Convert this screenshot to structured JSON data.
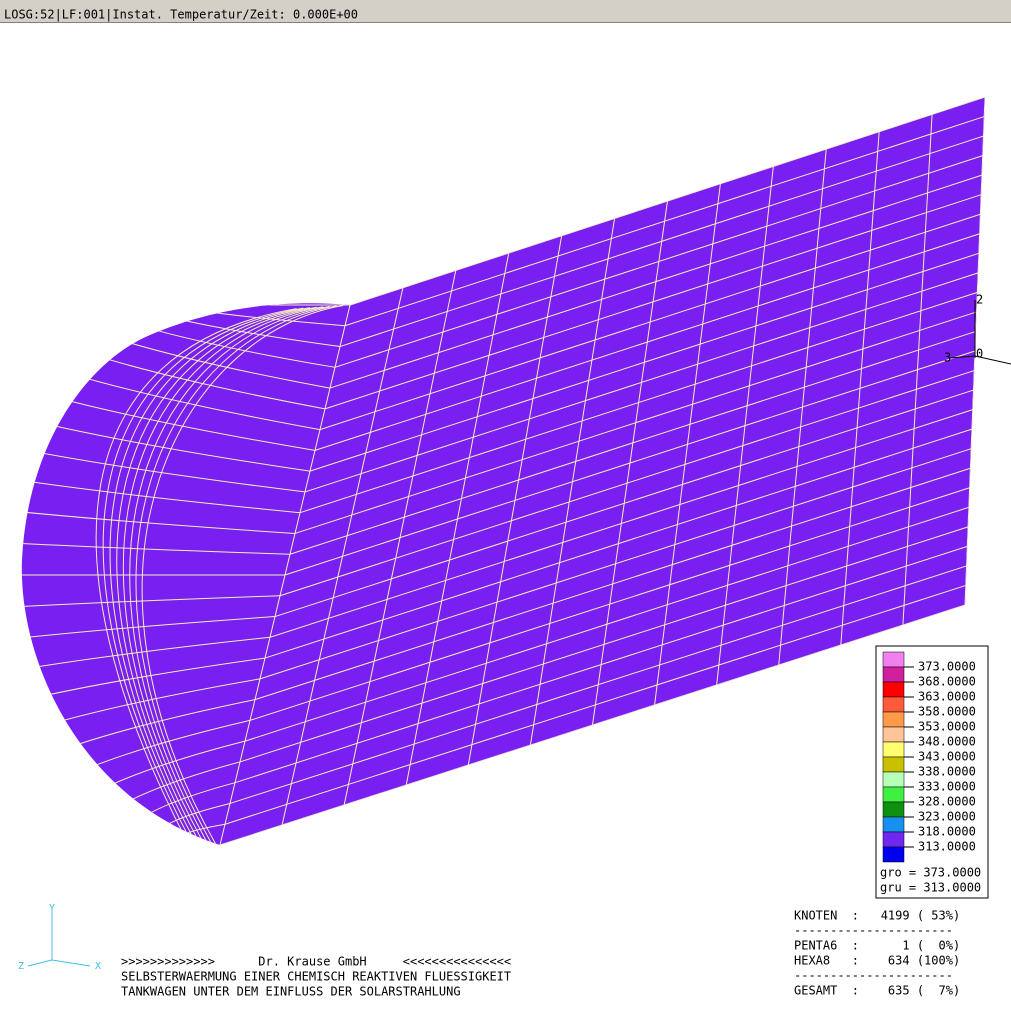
{
  "title_bar": "LOSG:52|LF:001|Instat. Temperatur/Zeit: 0.000E+00",
  "view_axis_labels": [
    "2",
    "0",
    "3"
  ],
  "legend": {
    "entries": [
      {
        "label": "373.0000",
        "color": "#f080f0"
      },
      {
        "label": "368.0000",
        "color": "#d020a0"
      },
      {
        "label": "363.0000",
        "color": "#ff0000"
      },
      {
        "label": "358.0000",
        "color": "#ff5a3c"
      },
      {
        "label": "353.0000",
        "color": "#ff9a48"
      },
      {
        "label": "348.0000",
        "color": "#ffc498"
      },
      {
        "label": "343.0000",
        "color": "#ffff70"
      },
      {
        "label": "338.0000",
        "color": "#c8c000"
      },
      {
        "label": "333.0000",
        "color": "#b8ffb8"
      },
      {
        "label": "328.0000",
        "color": "#40f040"
      },
      {
        "label": "323.0000",
        "color": "#109010"
      },
      {
        "label": "318.0000",
        "color": "#1890f0"
      },
      {
        "label": "313.0000",
        "color": "#7028f0"
      },
      {
        "label": "",
        "color": "#0000f0"
      }
    ],
    "max": "gro = 373.0000",
    "min": "gru = 313.0000"
  },
  "triad": {
    "y": "Y",
    "z": "Z",
    "x": "X"
  },
  "footer": [
    ">>>>>>>>>>>>>      Dr. Krause GmbH     <<<<<<<<<<<<<<<",
    "SELBSTERWAERMUNG EINER CHEMISCH REAKTIVEN FLUESSIGKEIT",
    "TANKWAGEN UNTER DEM EINFLUSS DER SOLARSTRAHLUNG"
  ],
  "stats": [
    "KNOTEN  :   4199 ( 53%)",
    "----------------------",
    "PENTA6  :      1 (  0%)",
    "HEXA8   :    634 (100%)",
    "----------------------",
    "GESAMT  :    635 (  7%)"
  ]
}
